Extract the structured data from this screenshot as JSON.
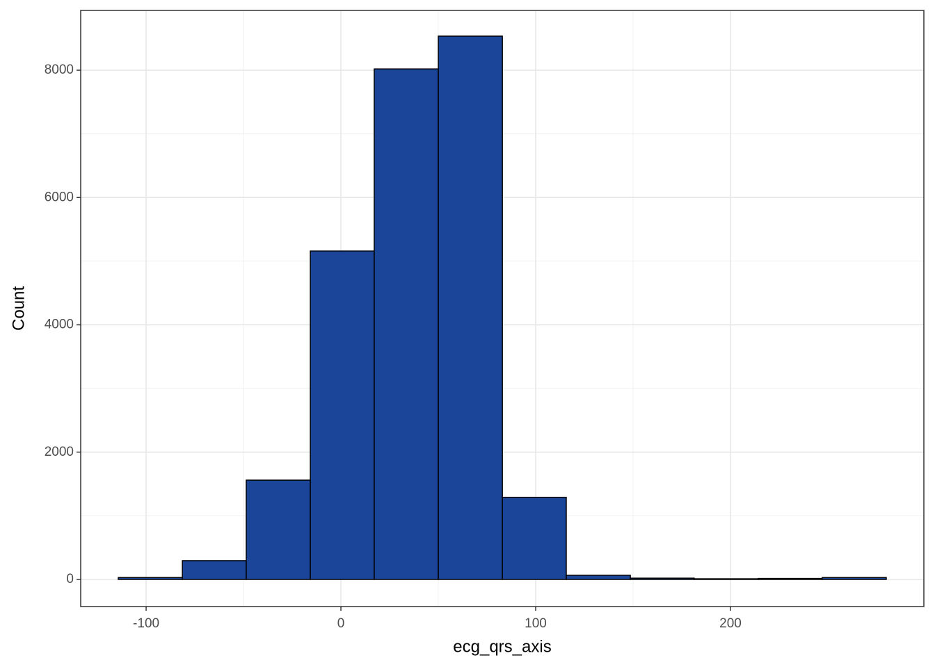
{
  "chart_data": {
    "type": "histogram",
    "xlabel": "ecg_qrs_axis",
    "ylabel": "Count",
    "bins": [
      -114.3,
      -81.4,
      -48.6,
      -15.7,
      17.1,
      50,
      82.9,
      115.7,
      148.6,
      181.4,
      214.3,
      247.1,
      280
    ],
    "values": [
      30,
      295,
      1560,
      5160,
      8020,
      8535,
      1290,
      65,
      20,
      10,
      15,
      30
    ],
    "color": "#1a4599",
    "edgecolor": "#000000",
    "xlim": [
      -133.6,
      299.3
    ],
    "ylim": [
      -426,
      8939
    ],
    "xticks": [
      -100,
      0,
      100,
      200
    ],
    "yticks": [
      0,
      2000,
      4000,
      6000,
      8000
    ],
    "grid": true
  }
}
